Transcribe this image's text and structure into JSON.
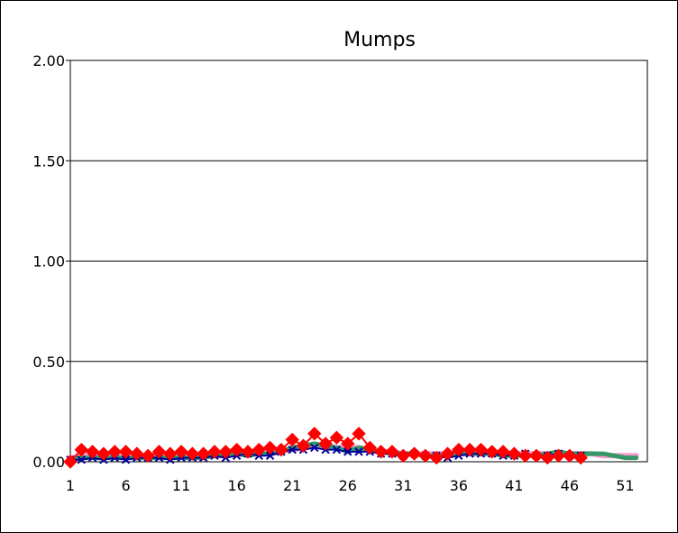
{
  "chart_data": {
    "type": "line",
    "title": "Mumps",
    "xlabel": "",
    "ylabel": "",
    "ylim": [
      0,
      2
    ],
    "yticks": [
      "0.00",
      "0.50",
      "1.00",
      "1.50",
      "2.00"
    ],
    "xlim": [
      1,
      53
    ],
    "xticks": [
      "1",
      "6",
      "11",
      "16",
      "21",
      "26",
      "31",
      "36",
      "41",
      "46",
      "51"
    ],
    "grid": "horizontal",
    "legend": "none",
    "series": [
      {
        "color": "#ff99cc",
        "marker": "none",
        "x": [
          1,
          2,
          3,
          4,
          5,
          6,
          7,
          8,
          9,
          10,
          11,
          12,
          13,
          14,
          15,
          16,
          17,
          18,
          19,
          20,
          21,
          22,
          23,
          24,
          25,
          26,
          27,
          28,
          29,
          30,
          31,
          32,
          33,
          34,
          35,
          36,
          37,
          38,
          39,
          40,
          41,
          42,
          43,
          44,
          45,
          46,
          47,
          48,
          49,
          50,
          51,
          52
        ],
        "values": [
          0.02,
          0.03,
          0.03,
          0.03,
          0.03,
          0.03,
          0.02,
          0.03,
          0.03,
          0.03,
          0.03,
          0.03,
          0.03,
          0.03,
          0.03,
          0.04,
          0.04,
          0.04,
          0.04,
          0.05,
          0.06,
          0.07,
          0.08,
          0.08,
          0.07,
          0.07,
          0.07,
          0.06,
          0.05,
          0.05,
          0.04,
          0.04,
          0.04,
          0.04,
          0.04,
          0.04,
          0.04,
          0.04,
          0.04,
          0.04,
          0.04,
          0.04,
          0.04,
          0.04,
          0.04,
          0.04,
          0.04,
          0.04,
          0.03,
          0.03,
          0.03,
          0.03
        ]
      },
      {
        "color": "#339966",
        "marker": "none",
        "x": [
          1,
          2,
          3,
          4,
          5,
          6,
          7,
          8,
          9,
          10,
          11,
          12,
          13,
          14,
          15,
          16,
          17,
          18,
          19,
          20,
          21,
          22,
          23,
          24,
          25,
          26,
          27,
          28,
          29,
          30,
          31,
          32,
          33,
          34,
          35,
          36,
          37,
          38,
          39,
          40,
          41,
          42,
          43,
          44,
          45,
          46,
          47,
          48,
          49,
          50,
          51,
          52
        ],
        "values": [
          0.01,
          0.02,
          0.02,
          0.02,
          0.02,
          0.02,
          0.02,
          0.02,
          0.02,
          0.02,
          0.02,
          0.02,
          0.02,
          0.03,
          0.03,
          0.04,
          0.03,
          0.04,
          0.04,
          0.05,
          0.07,
          0.08,
          0.09,
          0.08,
          0.07,
          0.05,
          0.07,
          0.06,
          0.05,
          0.04,
          0.04,
          0.04,
          0.03,
          0.03,
          0.03,
          0.04,
          0.04,
          0.04,
          0.04,
          0.03,
          0.03,
          0.03,
          0.03,
          0.04,
          0.05,
          0.04,
          0.04,
          0.04,
          0.04,
          0.03,
          0.02,
          0.02
        ]
      },
      {
        "color": "#000099",
        "marker": "x",
        "x": [
          1,
          2,
          3,
          4,
          5,
          6,
          7,
          8,
          9,
          10,
          11,
          12,
          13,
          14,
          15,
          16,
          17,
          18,
          19,
          20,
          21,
          22,
          23,
          24,
          25,
          26,
          27,
          28,
          29,
          30,
          31,
          32,
          33,
          34,
          35,
          36,
          37,
          38,
          39,
          40,
          41,
          42,
          43,
          44,
          45,
          46,
          47
        ],
        "values": [
          0.01,
          0.01,
          0.02,
          0.01,
          0.02,
          0.01,
          0.02,
          0.02,
          0.02,
          0.01,
          0.02,
          0.02,
          0.02,
          0.03,
          0.02,
          0.03,
          0.04,
          0.03,
          0.03,
          0.05,
          0.06,
          0.06,
          0.07,
          0.06,
          0.06,
          0.05,
          0.05,
          0.05,
          0.04,
          0.04,
          0.03,
          0.04,
          0.03,
          0.03,
          0.02,
          0.03,
          0.04,
          0.04,
          0.04,
          0.03,
          0.03,
          0.04,
          0.03,
          0.03,
          0.04,
          0.03,
          0.03
        ]
      },
      {
        "color": "#ff0000",
        "marker": "diamond",
        "x": [
          1,
          2,
          3,
          4,
          5,
          6,
          7,
          8,
          9,
          10,
          11,
          12,
          13,
          14,
          15,
          16,
          17,
          18,
          19,
          20,
          21,
          22,
          23,
          24,
          25,
          26,
          27,
          28,
          29,
          30,
          31,
          32,
          33,
          34,
          35,
          36,
          37,
          38,
          39,
          40,
          41,
          42,
          43,
          44,
          45,
          46,
          47
        ],
        "values": [
          0.0,
          0.06,
          0.05,
          0.04,
          0.05,
          0.05,
          0.04,
          0.03,
          0.05,
          0.04,
          0.05,
          0.04,
          0.04,
          0.05,
          0.05,
          0.06,
          0.05,
          0.06,
          0.07,
          0.06,
          0.11,
          0.08,
          0.14,
          0.09,
          0.12,
          0.09,
          0.14,
          0.07,
          0.05,
          0.05,
          0.03,
          0.04,
          0.03,
          0.02,
          0.04,
          0.06,
          0.06,
          0.06,
          0.05,
          0.05,
          0.04,
          0.03,
          0.03,
          0.02,
          0.03,
          0.03,
          0.02
        ]
      }
    ]
  }
}
